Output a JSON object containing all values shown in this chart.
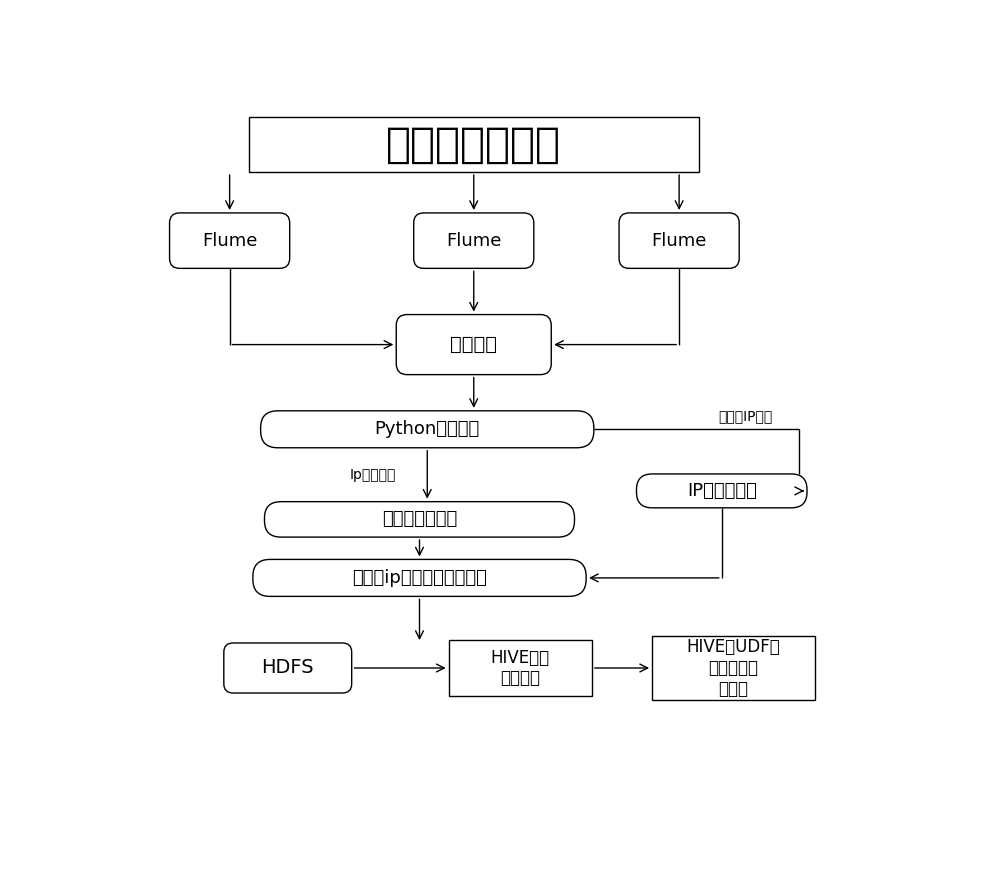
{
  "title": "海量的小的文件",
  "flume_labels": [
    "Flume",
    "Flume",
    "Flume"
  ],
  "big_pool_label": "大文件池",
  "python_clean_label": "Python清洗合并",
  "ip_match_label": "IP定位的匹配",
  "filter_label": "过滤检查并删除",
  "merge_label": "对新的ip地址区域数据合并",
  "hdfs_label": "HDFS",
  "hive_compress_label": "HIVE压缩\n编码处理",
  "hive_udf_label": "HIVE的UDF数\n据提取并分\n析处理",
  "ip_invalid_label": "Ip地址无效",
  "ip_valid_label": "有效的IP地址",
  "bg_color": "#ffffff",
  "box_edge_color": "#000000",
  "arrow_color": "#000000",
  "text_color": "#000000",
  "font_size_title": 30,
  "font_size_box": 13,
  "font_size_small": 10
}
